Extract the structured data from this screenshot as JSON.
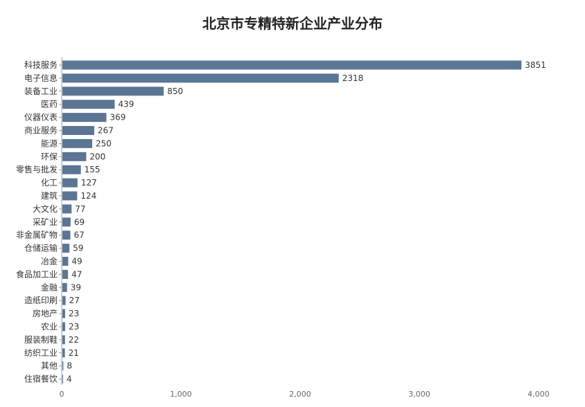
{
  "chart_data": {
    "type": "bar",
    "orientation": "horizontal",
    "title": "北京市专精特新企业产业分布",
    "xlabel": "",
    "ylabel": "",
    "categories": [
      "科技服务",
      "电子信息",
      "装备工业",
      "医药",
      "仪器仪表",
      "商业服务",
      "能源",
      "环保",
      "零售与批发",
      "化工",
      "建筑",
      "大文化",
      "采矿业",
      "非金属矿物",
      "仓储运输",
      "冶金",
      "食品加工业",
      "金融",
      "造纸印刷",
      "房地产",
      "农业",
      "服装制鞋",
      "纺织工业",
      "其他",
      "住宿餐饮"
    ],
    "values": [
      3851,
      2318,
      850,
      439,
      369,
      267,
      250,
      200,
      155,
      127,
      124,
      77,
      69,
      67,
      59,
      49,
      47,
      39,
      27,
      23,
      23,
      22,
      21,
      8,
      4
    ],
    "xlim": [
      0,
      4000
    ],
    "xticks": [
      "0",
      "1,000",
      "2,000",
      "3,000",
      "4,000"
    ],
    "xtick_values": [
      0,
      1000,
      2000,
      3000,
      4000
    ],
    "grid": false,
    "legend": "none",
    "colors": {
      "bar": "#5b7594",
      "axis": "#999999",
      "text": "#333333"
    }
  }
}
